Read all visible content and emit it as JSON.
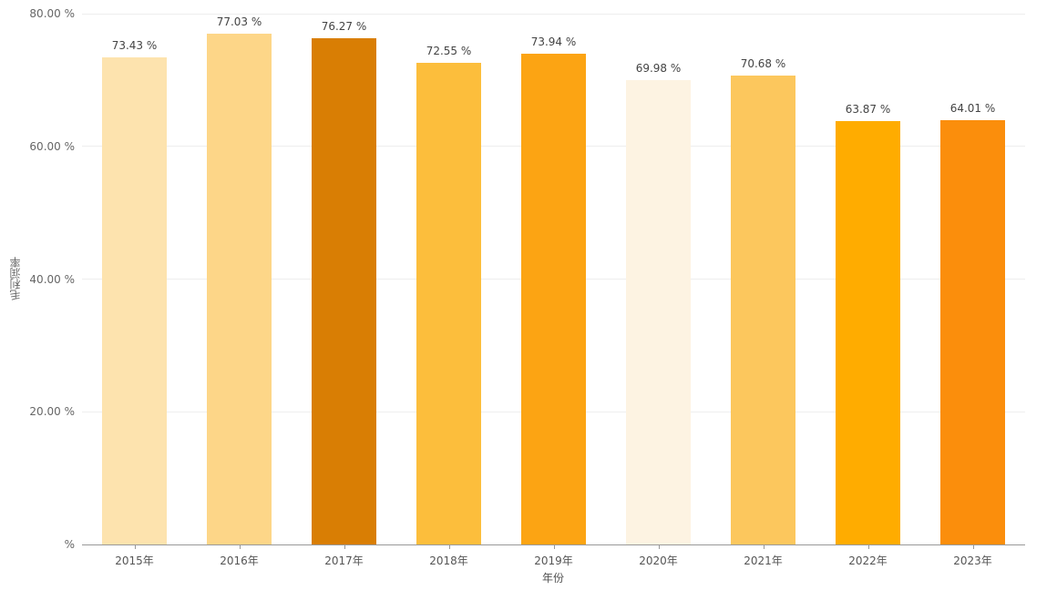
{
  "chart_data": {
    "type": "bar",
    "title": "",
    "xlabel": "年份",
    "ylabel": "毛利润率",
    "categories": [
      "2015年",
      "2016年",
      "2017年",
      "2018年",
      "2019年",
      "2020年",
      "2021年",
      "2022年",
      "2023年"
    ],
    "values": [
      73.43,
      77.03,
      76.27,
      72.55,
      73.94,
      69.98,
      70.68,
      63.87,
      64.01
    ],
    "value_labels": [
      "73.43 %",
      "77.03 %",
      "76.27 %",
      "72.55 %",
      "73.94 %",
      "69.98 %",
      "70.68 %",
      "63.87 %",
      "64.01 %"
    ],
    "bar_colors": [
      "#FDE3AE",
      "#FDD688",
      "#D97E04",
      "#FCBE3C",
      "#FCA413",
      "#FDF3E2",
      "#FCC75D",
      "#FFAC00",
      "#FB8E0C"
    ],
    "ylim": [
      0,
      80
    ],
    "yticks": [
      {
        "value": 80,
        "label": "80.00 %"
      },
      {
        "value": 60,
        "label": "60.00 %"
      },
      {
        "value": 40,
        "label": "40.00 %"
      },
      {
        "value": 20,
        "label": "20.00 %"
      },
      {
        "value": 0,
        "label": "%"
      }
    ],
    "grid": true,
    "legend_position": "none",
    "colors": {
      "grid_line": "#EEEEEE",
      "axis_line": "#999999",
      "tick_label": "#666666",
      "value_label": "#444444",
      "background": "#FFFFFF"
    }
  }
}
